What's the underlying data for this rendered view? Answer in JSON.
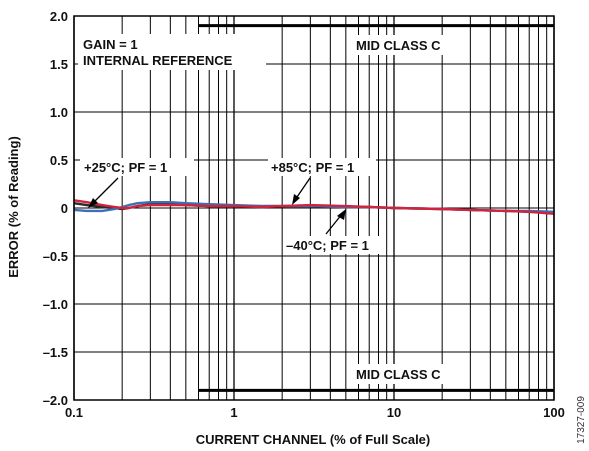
{
  "chart_data": {
    "type": "line",
    "x_scale": "log",
    "xlim": [
      0.1,
      100
    ],
    "ylim": [
      -2.0,
      2.0
    ],
    "xlabel": "CURRENT CHANNEL (% of Full Scale)",
    "ylabel": "ERROR (% of Reading)",
    "x_ticks": [
      "0.1",
      "1",
      "10",
      "100"
    ],
    "y_ticks": [
      "2.0",
      "1.5",
      "1.0",
      "0.5",
      "0",
      "–0.5",
      "–1.0",
      "–1.5",
      "–2.0"
    ],
    "grid": true,
    "series": [
      {
        "name": "+25°C; PF = 1",
        "color": "#2b2b2b",
        "x": [
          0.1,
          0.12,
          0.15,
          0.18,
          0.2,
          0.22,
          0.25,
          0.3,
          0.4,
          0.5,
          0.7,
          1,
          1.5,
          2,
          3,
          5,
          7,
          10,
          20,
          30,
          50,
          70,
          100
        ],
        "y": [
          0.05,
          0.03,
          0.01,
          0.0,
          -0.01,
          0.0,
          0.02,
          0.04,
          0.04,
          0.03,
          0.02,
          0.02,
          0.02,
          0.02,
          0.02,
          0.01,
          0.01,
          0.0,
          -0.01,
          -0.02,
          -0.03,
          -0.04,
          -0.05
        ]
      },
      {
        "name": "–40°C; PF = 1",
        "color": "#3c6fb6",
        "x": [
          0.1,
          0.12,
          0.15,
          0.18,
          0.2,
          0.22,
          0.25,
          0.3,
          0.4,
          0.5,
          0.7,
          1,
          1.5,
          2,
          3,
          5,
          7,
          10,
          20,
          30,
          50,
          70,
          100
        ],
        "y": [
          -0.02,
          -0.03,
          -0.03,
          -0.01,
          0.01,
          0.03,
          0.05,
          0.06,
          0.06,
          0.05,
          0.04,
          0.03,
          0.02,
          0.02,
          0.02,
          0.01,
          0.01,
          0.0,
          -0.01,
          -0.02,
          -0.03,
          -0.03,
          -0.04
        ]
      },
      {
        "name": "+85°C; PF = 1",
        "color": "#d2233c",
        "x": [
          0.1,
          0.12,
          0.15,
          0.18,
          0.2,
          0.22,
          0.25,
          0.3,
          0.4,
          0.5,
          0.7,
          1,
          1.5,
          2,
          3,
          5,
          7,
          10,
          20,
          30,
          50,
          70,
          100
        ],
        "y": [
          0.08,
          0.06,
          0.03,
          0.01,
          0.0,
          0.0,
          0.02,
          0.03,
          0.03,
          0.03,
          0.02,
          0.02,
          0.01,
          0.02,
          0.03,
          0.02,
          0.01,
          0.0,
          -0.01,
          -0.02,
          -0.03,
          -0.04,
          -0.06
        ]
      }
    ],
    "limit_lines": [
      {
        "y": 1.9,
        "x_from": 0.6,
        "x_to": 100,
        "label": "MID CLASS C"
      },
      {
        "y": -1.9,
        "x_from": 0.6,
        "x_to": 100,
        "label": "MID CLASS C"
      }
    ],
    "annotations": {
      "gain": "GAIN = 1",
      "reference": "INTERNAL REFERENCE",
      "label_25": "+25°C; PF = 1",
      "label_85": "+85°C; PF = 1",
      "label_m40": "–40°C; PF = 1"
    },
    "figure_id": "17327-009"
  }
}
